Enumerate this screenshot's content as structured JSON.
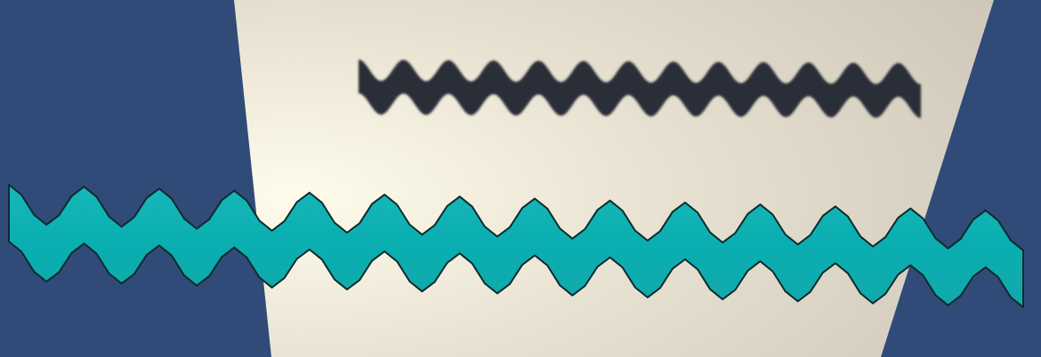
{
  "colors": {
    "background": "#304b78",
    "paper_light": "#fbf6e6",
    "paper_mid": "#e6e0cf",
    "paper_dark": "#cfc8b9",
    "dark_ribbon": "#2b2f38",
    "teal_ribbon": "#10b1b3",
    "teal_edge": "#0e2a2c"
  }
}
